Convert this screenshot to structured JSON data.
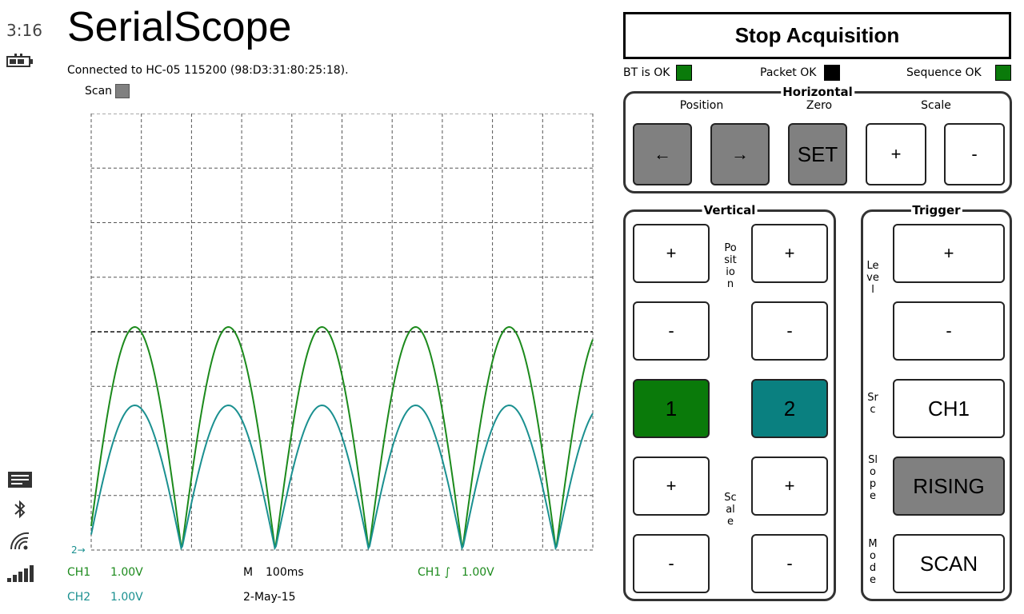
{
  "system": {
    "time": "3:16"
  },
  "app": {
    "title": "SerialScope",
    "connection": "Connected to HC-05 115200 (98:D3:31:80:25:18).",
    "scan_label": "Scan"
  },
  "scope": {
    "ch2_marker": "2→",
    "ch1_label": "CH1",
    "ch1_scale": "1.00V",
    "ch2_label": "CH2",
    "ch2_scale": "1.00V",
    "timebase_label": "M",
    "timebase": "100ms",
    "date": "2-May-15",
    "trigger_label": "CH1 ∫",
    "trigger_level": "1.00V",
    "colors": {
      "ch1": "#1c8a1c",
      "ch2": "#1a9090"
    }
  },
  "controls": {
    "stop_label": "Stop Acquisition",
    "status": {
      "bt_label": "BT is OK",
      "packet_label": "Packet OK",
      "sequence_label": "Sequence OK",
      "bt_color": "#0a7a0a",
      "packet_color": "#000000",
      "sequence_color": "#0a7a0a"
    },
    "horizontal": {
      "title": "Horizontal",
      "position_label": "Position",
      "zero_label": "Zero",
      "scale_label": "Scale",
      "left": "←",
      "right": "→",
      "set": "SET",
      "plus": "+",
      "minus": "-"
    },
    "vertical": {
      "title": "Vertical",
      "position_label": "Position",
      "scale_label": "Scale",
      "plus": "+",
      "minus": "-",
      "ch1": "1",
      "ch2": "2",
      "ch1_color": "#0a7a0a",
      "ch2_color": "#0a8080"
    },
    "trigger": {
      "title": "Trigger",
      "level_label": "Level",
      "src_label": "Src",
      "slope_label": "Slope",
      "mode_label": "Mode",
      "plus": "+",
      "minus": "-",
      "source": "CH1",
      "slope": "RISING",
      "mode": "SCAN"
    }
  }
}
